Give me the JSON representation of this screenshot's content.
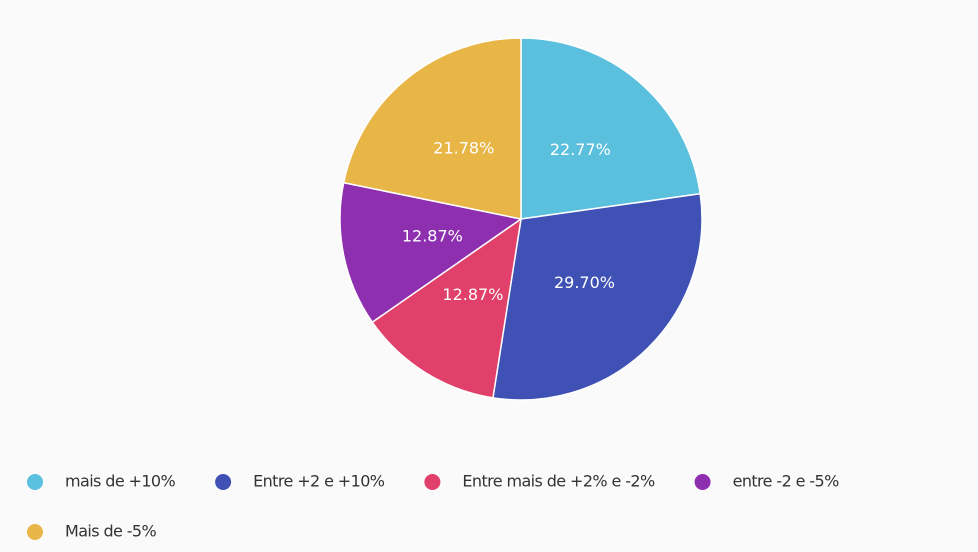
{
  "chart_data": {
    "type": "pie",
    "categories": [
      "mais de +10%",
      "Entre +2 e +10%",
      "Entre mais de +2% e -2%",
      "entre -2 e -5%",
      "Mais de -5%"
    ],
    "values": [
      22.77,
      29.7,
      12.87,
      12.87,
      21.78
    ],
    "value_labels": [
      "22.77%",
      "29.70%",
      "12.87%",
      "12.87%",
      "21.78%"
    ],
    "colors": [
      "#5bc0de",
      "#3f51b5",
      "#e0406a",
      "#8e2fb0",
      "#e8b547"
    ],
    "legend": "bottom"
  }
}
